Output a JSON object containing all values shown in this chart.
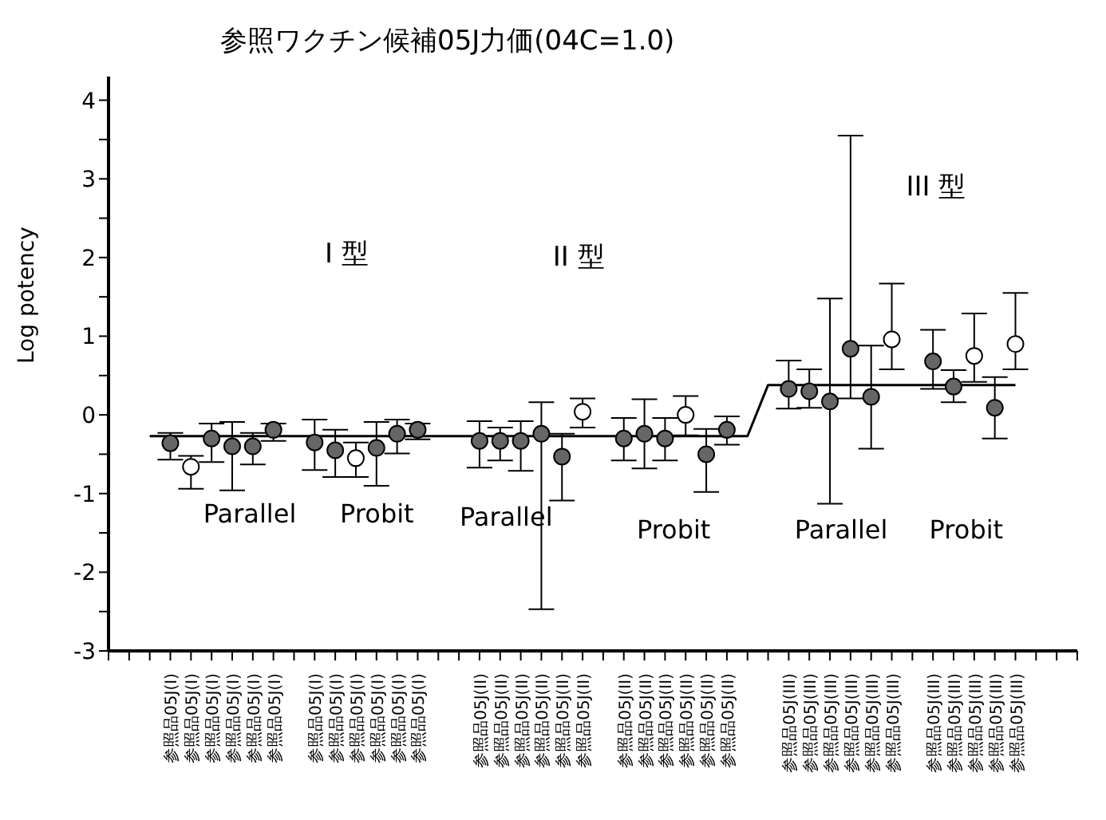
{
  "chart_data": {
    "type": "scatter",
    "title": "参照ワクチン候補05J力価(04C=1.0)",
    "ylabel": "Log potency",
    "categories": [
      null,
      null,
      null,
      "参照品05J(I)",
      "参照品05J(I)",
      "参照品05J(I)",
      "参照品05J(I)",
      "参照品05J(I)",
      "参照品05J(I)",
      null,
      "参照品05J(I)",
      "参照品05J(I)",
      "参照品05J(I)",
      "参照品05J(I)",
      "参照品05J(I)",
      "参照品05J(I)",
      null,
      null,
      "参照品05J(II)",
      "参照品05J(II)",
      "参照品05J(II)",
      "参照品05J(II)",
      "参照品05J(II)",
      "参照品05J(II)",
      null,
      "参照品05J(II)",
      "参照品05J(II)",
      "参照品05J(II)",
      "参照品05J(II)",
      "参照品05J(II)",
      "参照品05J(II)",
      null,
      null,
      "参照品05J(III)",
      "参照品05J(III)",
      "参照品05J(III)",
      "参照品05J(III)",
      "参照品05J(III)",
      "参照品05J(III)",
      null,
      "参照品05J(III)",
      "参照品05J(III)",
      "参照品05J(III)",
      "参照品05J(III)",
      "参照品05J(III)",
      null,
      null,
      null
    ],
    "series": [
      {
        "color": "#666666",
        "values": [
          null,
          null,
          null,
          -0.36,
          null,
          -0.3,
          -0.4,
          -0.4,
          -0.19,
          null,
          -0.35,
          -0.45,
          null,
          -0.42,
          -0.24,
          -0.19,
          null,
          null,
          -0.33,
          -0.33,
          -0.33,
          -0.24,
          -0.53,
          null,
          null,
          -0.3,
          -0.24,
          -0.3,
          null,
          -0.5,
          -0.19,
          null,
          null,
          0.33,
          0.3,
          0.17,
          0.84,
          0.23,
          null,
          null,
          0.68,
          0.36,
          null,
          0.09,
          null,
          null,
          null,
          null
        ],
        "errors": [
          null,
          null,
          null,
          [
            -0.57,
            -0.23
          ],
          null,
          [
            -0.6,
            -0.11
          ],
          [
            -0.96,
            -0.09
          ],
          [
            -0.63,
            -0.23
          ],
          [
            -0.33,
            -0.11
          ],
          null,
          [
            -0.7,
            -0.06
          ],
          [
            -0.79,
            -0.19
          ],
          null,
          [
            -0.9,
            -0.09
          ],
          [
            -0.49,
            -0.06
          ],
          [
            -0.31,
            -0.11
          ],
          null,
          null,
          [
            -0.67,
            -0.08
          ],
          [
            -0.58,
            -0.16
          ],
          [
            -0.71,
            -0.08
          ],
          [
            -2.47,
            0.16
          ],
          [
            -1.09,
            -0.24
          ],
          null,
          null,
          [
            -0.58,
            -0.04
          ],
          [
            -0.68,
            0.2
          ],
          [
            -0.58,
            -0.04
          ],
          null,
          [
            -0.98,
            -0.18
          ],
          [
            -0.38,
            -0.02
          ],
          null,
          null,
          [
            0.08,
            0.69
          ],
          [
            0.09,
            0.58
          ],
          [
            -1.13,
            1.48
          ],
          [
            0.21,
            3.55
          ],
          [
            -0.43,
            0.88
          ],
          null,
          null,
          [
            0.33,
            1.08
          ],
          [
            0.16,
            0.57
          ],
          null,
          [
            -0.3,
            0.48
          ],
          null,
          null,
          null,
          null
        ]
      },
      {
        "color": "#ffffff",
        "values": [
          null,
          null,
          null,
          null,
          -0.66,
          null,
          null,
          null,
          null,
          null,
          null,
          null,
          -0.55,
          null,
          null,
          null,
          null,
          null,
          null,
          null,
          null,
          null,
          null,
          0.04,
          null,
          null,
          null,
          null,
          0.0,
          null,
          null,
          null,
          null,
          null,
          null,
          null,
          null,
          null,
          0.96,
          null,
          null,
          null,
          0.75,
          null,
          0.9,
          null,
          null,
          null
        ],
        "errors": [
          null,
          null,
          null,
          null,
          [
            -0.94,
            -0.52
          ],
          null,
          null,
          null,
          null,
          null,
          null,
          null,
          [
            -0.79,
            -0.35
          ],
          null,
          null,
          null,
          null,
          null,
          null,
          null,
          null,
          null,
          null,
          [
            -0.16,
            0.21
          ],
          null,
          null,
          null,
          null,
          [
            -0.26,
            0.24
          ],
          null,
          null,
          null,
          null,
          null,
          null,
          null,
          null,
          null,
          [
            0.58,
            1.67
          ],
          null,
          null,
          null,
          [
            0.42,
            1.29
          ],
          null,
          [
            0.58,
            1.55
          ],
          null,
          null,
          null
        ]
      },
      {
        "type": "line",
        "marker": "none",
        "color": "#000000",
        "values": [
          null,
          null,
          -0.27,
          -0.27,
          -0.27,
          -0.27,
          -0.27,
          -0.27,
          -0.27,
          -0.27,
          -0.27,
          -0.27,
          -0.27,
          -0.27,
          -0.27,
          -0.27,
          -0.27,
          -0.27,
          -0.27,
          -0.27,
          -0.27,
          -0.27,
          -0.27,
          -0.27,
          -0.27,
          -0.27,
          -0.27,
          -0.27,
          -0.27,
          -0.27,
          -0.27,
          -0.27,
          0.38,
          0.38,
          0.38,
          0.38,
          0.38,
          0.38,
          0.38,
          0.38,
          0.38,
          0.38,
          0.38,
          0.38,
          0.38,
          null,
          null,
          null
        ]
      }
    ],
    "ylim": [
      -3,
      4.3
    ],
    "yticks": [
      -3,
      {
        "value": -2.5,
        "label": null
      },
      -2,
      {
        "value": -1.5,
        "label": null
      },
      -1,
      {
        "value": -0.5,
        "label": null
      },
      0,
      {
        "value": 0.5,
        "label": null
      },
      1,
      {
        "value": 1.5,
        "label": null
      },
      2,
      {
        "value": 2.5,
        "label": null
      },
      3,
      {
        "value": 3.5,
        "label": null
      },
      4
    ],
    "marker": "circle",
    "grid": false,
    "legend": false,
    "annotations": [
      "I 型",
      "II 型",
      "III 型",
      "Parallel",
      "Probit",
      "Parallel",
      "Probit",
      "Parallel",
      "Probit"
    ]
  }
}
